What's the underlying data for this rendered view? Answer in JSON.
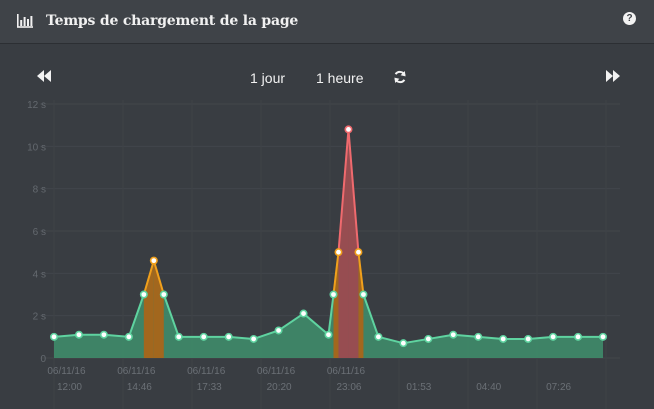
{
  "header": {
    "title": "Temps de chargement de la page",
    "chart_icon": "bar-chart-icon",
    "help_icon": "question-circle-icon",
    "help_label": "?"
  },
  "toolbar": {
    "prev_icon": "fast-backward-icon",
    "next_icon": "fast-forward-icon",
    "range_day": "1 jour",
    "range_hour": "1 heure",
    "refresh_icon": "refresh-icon"
  },
  "colors": {
    "good": "#5fd3a0",
    "good_fill": "#3f8f6c",
    "warn": "#f0a01c",
    "warn_fill": "#a8651a",
    "bad": "#ef6a6e",
    "bad_fill": "#9c4a50",
    "background": "#393d42"
  },
  "chart_data": {
    "type": "area",
    "title": "Temps de chargement de la page",
    "xlabel": "",
    "ylabel": "",
    "ylim": [
      0,
      12
    ],
    "ytick_labels": [
      "0",
      "2 s",
      "4 s",
      "6 s",
      "8 s",
      "10 s",
      "12 s"
    ],
    "yticks": [
      0,
      2,
      4,
      6,
      8,
      10,
      12
    ],
    "x_tick_labels": [
      {
        "index": 0.5,
        "line1": "06/11/16",
        "line2": "12:00"
      },
      {
        "index": 3.3,
        "line1": "06/11/16",
        "line2": "14:46"
      },
      {
        "index": 6.1,
        "line1": "06/11/16",
        "line2": "17:33"
      },
      {
        "index": 8.9,
        "line1": "06/11/16",
        "line2": "20:20"
      },
      {
        "index": 11.7,
        "line1": "06/11/16",
        "line2": "23:06"
      },
      {
        "index": 14.5,
        "line1": "",
        "line2": "01:53"
      },
      {
        "index": 17.3,
        "line1": "",
        "line2": "04:40"
      },
      {
        "index": 20.1,
        "line1": "",
        "line2": "07:26"
      }
    ],
    "values": [
      1.0,
      1.1,
      1.1,
      1.0,
      3.0,
      4.6,
      3.0,
      1.0,
      1.0,
      1.0,
      0.9,
      1.3,
      2.1,
      1.1,
      3.0,
      5.0,
      10.8,
      5.0,
      3.0,
      1.0,
      0.7,
      0.9,
      1.1,
      1.0,
      0.9,
      0.9,
      1.0,
      1.0,
      1.0
    ],
    "x_positions": [
      0,
      1,
      2,
      3,
      3.6,
      4.0,
      4.4,
      5,
      6,
      7,
      8,
      9,
      10,
      11,
      11.2,
      11.4,
      11.8,
      12.2,
      12.4,
      13,
      14,
      15,
      16,
      17,
      18,
      19,
      20,
      21,
      22
    ],
    "thresholds": {
      "warn": 3,
      "bad": 5
    },
    "grid": true,
    "legend": "none"
  }
}
